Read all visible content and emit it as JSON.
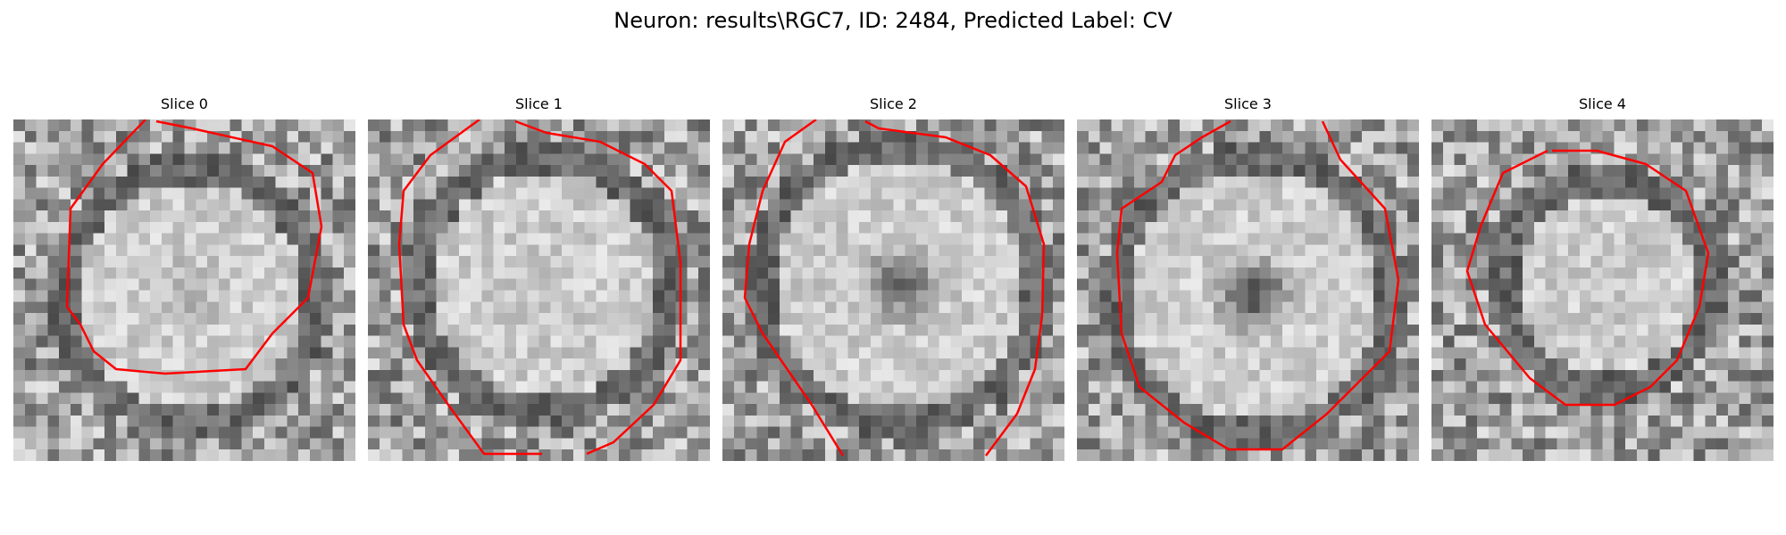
{
  "figure": {
    "title": "Neuron: results\\RGC7, ID: 2484, Predicted Label: CV"
  },
  "style": {
    "contour_color": "#ff0000"
  },
  "panels": [
    {
      "title": "Slice 0"
    },
    {
      "title": "Slice 1"
    },
    {
      "title": "Slice 2"
    },
    {
      "title": "Slice 3"
    },
    {
      "title": "Slice 4"
    }
  ]
}
